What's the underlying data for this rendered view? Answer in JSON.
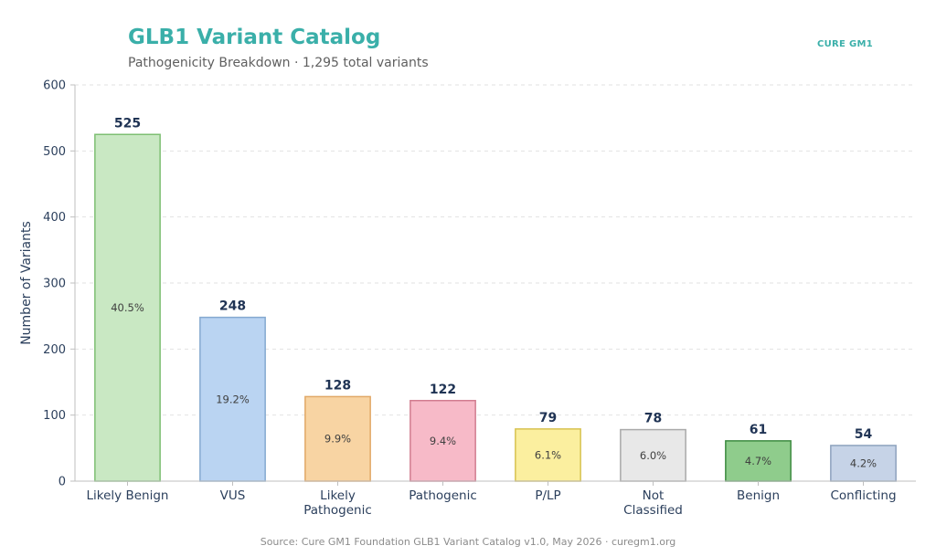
{
  "header": {
    "title": "GLB1 Variant Catalog",
    "subtitle": "Pathogenicity Breakdown  ·  1,295 total variants",
    "brand": "CURE GM1"
  },
  "footer": {
    "source": "Source: Cure GM1 Foundation GLB1 Variant Catalog v1.0, May 2026  ·  curegm1.org"
  },
  "chart_data": {
    "type": "bar",
    "title": "GLB1 Variant Catalog",
    "subtitle": "Pathogenicity Breakdown  ·  1,295 total variants",
    "xlabel": "",
    "ylabel": "Number of Variants",
    "ylim": [
      0,
      600
    ],
    "yticks": [
      0,
      100,
      200,
      300,
      400,
      500,
      600
    ],
    "grid": true,
    "categories": [
      [
        "Likely Benign"
      ],
      [
        "VUS"
      ],
      [
        "Likely",
        "Pathogenic"
      ],
      [
        "Pathogenic"
      ],
      [
        "P/LP"
      ],
      [
        "Not",
        "Classified"
      ],
      [
        "Benign"
      ],
      [
        "Conflicting"
      ]
    ],
    "values": [
      525,
      248,
      128,
      122,
      79,
      78,
      61,
      54
    ],
    "percent_labels": [
      "40.5%",
      "19.2%",
      "9.9%",
      "9.4%",
      "6.1%",
      "6.0%",
      "4.7%",
      "4.2%"
    ],
    "colors": {
      "fill": [
        "#c9e8c3",
        "#bad4f2",
        "#f8d4a3",
        "#f7bac8",
        "#fbef9f",
        "#e8e8e8",
        "#8fcc8c",
        "#c6d3e7"
      ],
      "stroke": [
        "#7dbf72",
        "#85a9d0",
        "#e1a867",
        "#d27d90",
        "#d7c250",
        "#a9a9a9",
        "#3c8a40",
        "#8ea2be"
      ]
    }
  }
}
